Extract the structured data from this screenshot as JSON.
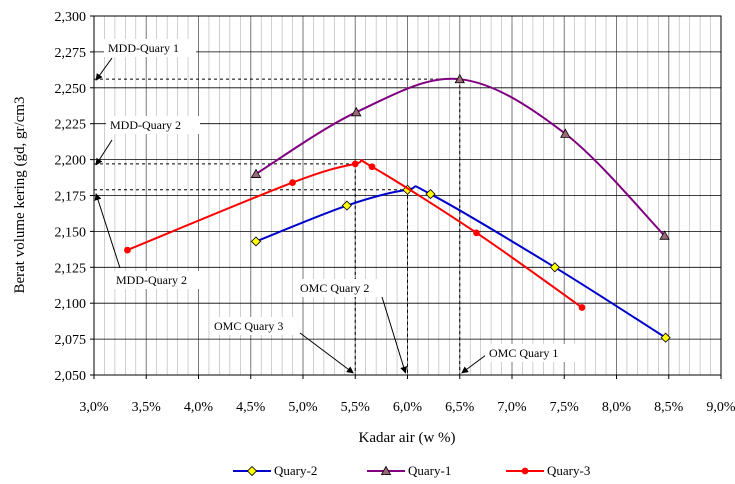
{
  "chart_data": {
    "type": "line",
    "xlabel": "Kadar air (w %)",
    "ylabel": "Berat volume kering (gd, gr/cm3",
    "xlim": [
      0.03,
      0.09
    ],
    "ylim": [
      2.05,
      2.3
    ],
    "x_ticks": [
      "3,0%",
      "3,5%",
      "4,0%",
      "4,5%",
      "5,0%",
      "5,5%",
      "6,0%",
      "6,5%",
      "7,0%",
      "7,5%",
      "8,0%",
      "8,5%",
      "9,0%"
    ],
    "y_ticks": [
      "2,050",
      "2,075",
      "2,100",
      "2,125",
      "2,150",
      "2,175",
      "2,200",
      "2,225",
      "2,250",
      "2,275",
      "2,300"
    ],
    "grid": true,
    "legend_position": "bottom",
    "series": [
      {
        "name": "Quary-2",
        "color": "#0000cc",
        "marker": "diamond",
        "marker_color": "#ffff00",
        "points": [
          [
            0.0455,
            2.143
          ],
          [
            0.0542,
            2.168
          ],
          [
            0.06,
            2.179
          ],
          [
            0.0622,
            2.176
          ],
          [
            0.0741,
            2.125
          ],
          [
            0.0847,
            2.076
          ]
        ]
      },
      {
        "name": "Quary-1",
        "color": "#800080",
        "marker": "triangle",
        "marker_color": "#9a6a78",
        "points": [
          [
            0.0455,
            2.19
          ],
          [
            0.0551,
            2.233
          ],
          [
            0.065,
            2.256
          ],
          [
            0.0751,
            2.218
          ],
          [
            0.0846,
            2.147
          ]
        ]
      },
      {
        "name": "Quary-3",
        "color": "#ff0000",
        "marker": "circle",
        "marker_color": "#ff0000",
        "points": [
          [
            0.0332,
            2.137
          ],
          [
            0.049,
            2.184
          ],
          [
            0.055,
            2.197
          ],
          [
            0.0566,
            2.195
          ],
          [
            0.0666,
            2.149
          ],
          [
            0.0767,
            2.097
          ]
        ]
      }
    ],
    "annotations": [
      {
        "text": "MDD-Quary 1"
      },
      {
        "text": "MDD-Quary 2"
      },
      {
        "text": "MDD-Quary 2"
      },
      {
        "text": "OMC Quary 2"
      },
      {
        "text": "OMC Quary 3"
      },
      {
        "text": "OMC Quary 1"
      }
    ]
  }
}
